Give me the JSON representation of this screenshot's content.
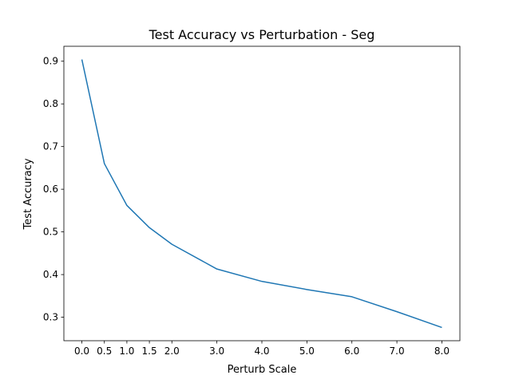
{
  "chart_data": {
    "type": "line",
    "title": "Test Accuracy vs Perturbation - Seg",
    "xlabel": "Perturb Scale",
    "ylabel": "Test Accuracy",
    "x": [
      0.0,
      0.5,
      1.0,
      1.5,
      2.0,
      3.0,
      4.0,
      5.0,
      6.0,
      7.0,
      8.0
    ],
    "series": [
      {
        "values": [
          0.904,
          0.66,
          0.562,
          0.51,
          0.471,
          0.413,
          0.384,
          0.365,
          0.348,
          0.313,
          0.276
        ],
        "color": "#1f77b4"
      }
    ],
    "xticks": [
      0.0,
      0.5,
      1.0,
      1.5,
      2.0,
      3.0,
      4.0,
      5.0,
      6.0,
      7.0,
      8.0
    ],
    "xtick_labels": [
      "0.0",
      "0.5",
      "1.0",
      "1.5",
      "2.0",
      "3.0",
      "4.0",
      "5.0",
      "6.0",
      "7.0",
      "8.0"
    ],
    "yticks": [
      0.3,
      0.4,
      0.5,
      0.6,
      0.7,
      0.8,
      0.9
    ],
    "ytick_labels": [
      "0.3",
      "0.4",
      "0.5",
      "0.6",
      "0.7",
      "0.8",
      "0.9"
    ],
    "xlim": [
      -0.4,
      8.4
    ],
    "ylim": [
      0.245,
      0.935
    ],
    "grid": false,
    "legend": "none"
  }
}
